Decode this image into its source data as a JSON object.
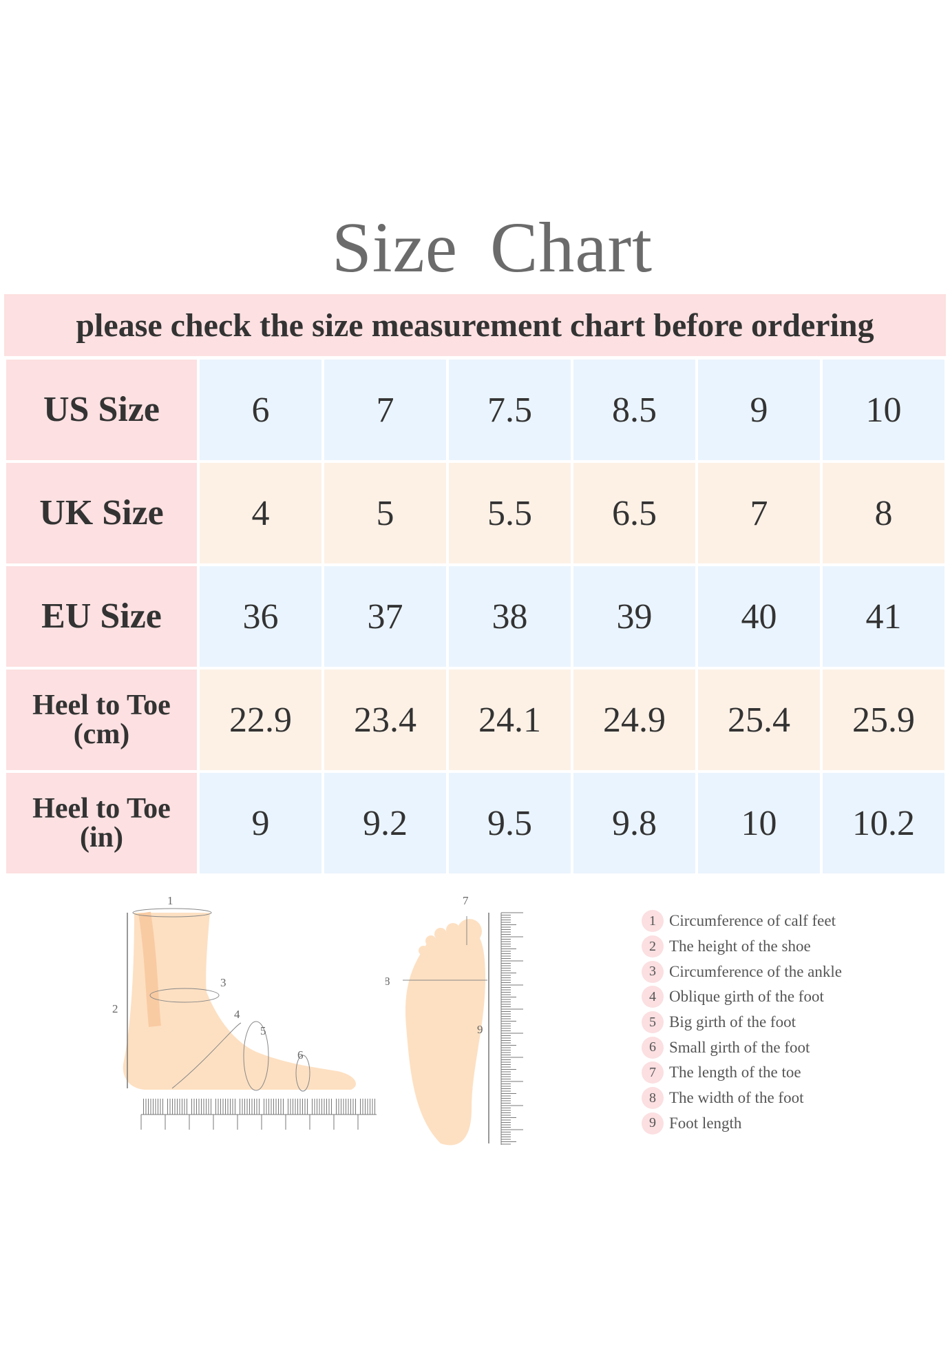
{
  "title": "Size  Chart",
  "banner": "please check the size measurement chart before ordering",
  "rows": [
    {
      "label": "US Size",
      "values": [
        "6",
        "7",
        "7.5",
        "8.5",
        "9",
        "10"
      ]
    },
    {
      "label": "UK Size",
      "values": [
        "4",
        "5",
        "5.5",
        "6.5",
        "7",
        "8"
      ]
    },
    {
      "label": "EU Size",
      "values": [
        "36",
        "37",
        "38",
        "39",
        "40",
        "41"
      ]
    },
    {
      "label_line1": "Heel to Toe",
      "label_line2": "(cm)",
      "values": [
        "22.9",
        "23.4",
        "24.1",
        "24.9",
        "25.4",
        "25.9"
      ]
    },
    {
      "label_line1": "Heel to Toe",
      "label_line2": "(in)",
      "values": [
        "9",
        "9.2",
        "9.5",
        "9.8",
        "10",
        "10.2"
      ]
    }
  ],
  "diagram_labels": [
    "1",
    "2",
    "3",
    "4",
    "5",
    "6",
    "7",
    "8",
    "9"
  ],
  "legend": [
    {
      "num": "1",
      "text": "Circumference of calf feet"
    },
    {
      "num": "2",
      "text": "The height of the shoe"
    },
    {
      "num": "3",
      "text": "Circumference of the ankle"
    },
    {
      "num": "4",
      "text": "Oblique girth of the foot"
    },
    {
      "num": "5",
      "text": "Big girth of the foot"
    },
    {
      "num": "6",
      "text": "Small girth of the foot"
    },
    {
      "num": "7",
      "text": "The length of the toe"
    },
    {
      "num": "8",
      "text": "The width of the foot"
    },
    {
      "num": "9",
      "text": "Foot length"
    }
  ],
  "colors": {
    "label_bg": "#fde0e1",
    "row_blue": "#eaf4fe",
    "row_peach": "#fdf1e6",
    "skin": "#fde0c2",
    "title": "#6b6b6b"
  }
}
